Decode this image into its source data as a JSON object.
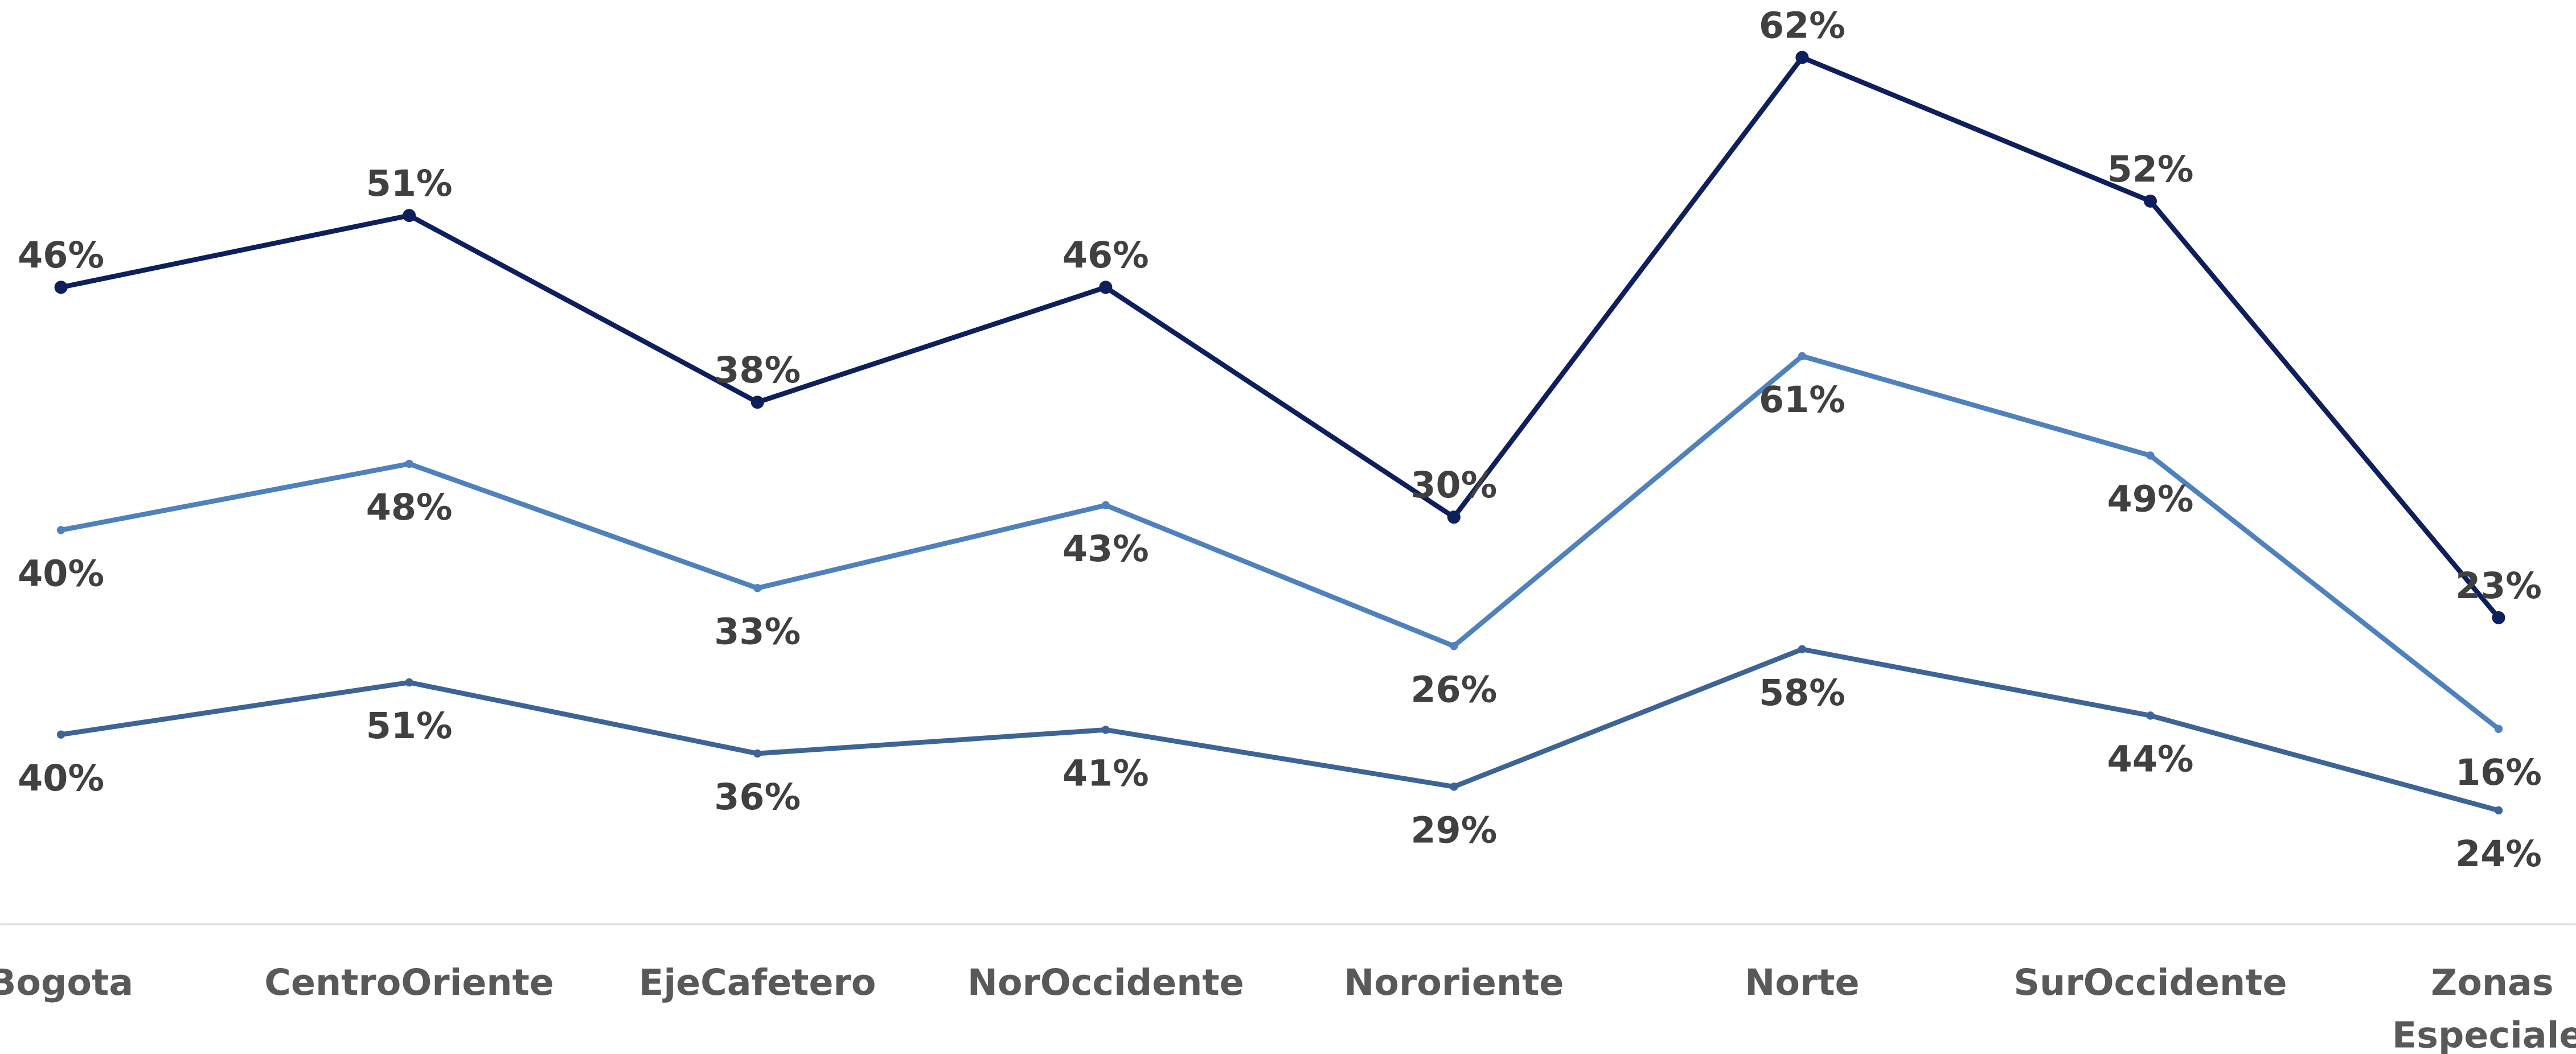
{
  "chart_data": {
    "type": "line",
    "categories": [
      "Bogota",
      "CentroOriente",
      "EjeCafetero",
      "NorOccidente",
      "Nororiente",
      "Norte",
      "SurOccidente",
      "Zonas Especiales"
    ],
    "series": [
      {
        "color": "#0d1f5c",
        "ylim": [
          2,
          66
        ],
        "label_position": "above",
        "values": [
          46,
          51,
          38,
          46,
          30,
          62,
          52,
          23
        ],
        "value_labels": [
          "46%",
          "51%",
          "38%",
          "46%",
          "30%",
          "62%",
          "52%",
          "23%"
        ]
      },
      {
        "color": "#4f81bd",
        "ylim": [
          -7,
          104
        ],
        "label_position": "below",
        "values": [
          40,
          48,
          33,
          43,
          26,
          61,
          49,
          16
        ],
        "value_labels": [
          "40%",
          "48%",
          "33%",
          "43%",
          "26%",
          "61%",
          "49%",
          "16%"
        ]
      },
      {
        "color": "#3d6496",
        "ylim": [
          1,
          195
        ],
        "label_position": "below",
        "values": [
          40,
          51,
          36,
          41,
          29,
          58,
          44,
          24
        ],
        "value_labels": [
          "40%",
          "51%",
          "36%",
          "41%",
          "29%",
          "58%",
          "44%",
          "24%"
        ]
      }
    ]
  }
}
